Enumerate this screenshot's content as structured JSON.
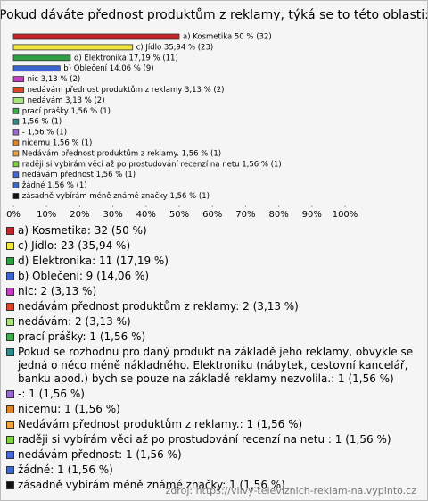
{
  "chart_data": {
    "type": "bar",
    "orientation": "horizontal",
    "title": "Pokud dáváte přednost produktům z reklamy, týká se to této oblasti:",
    "values": [
      50,
      35.94,
      17.19,
      14.06,
      3.13,
      3.13,
      3.13,
      1.56,
      1.56,
      1.56,
      1.56,
      1.56,
      1.56,
      1.56,
      1.56,
      1.56
    ],
    "value_labels": [
      "a) Kosmetika 50 % (32)",
      "c) Jídlo 35,94 % (23)",
      "d) Elektronika 17,19 % (11)",
      "b) Oblečení 14,06 % (9)",
      "nic 3,13 % (2)",
      "nedávám přednost produktům z reklamy 3,13 % (2)",
      "nedávám 3,13 % (2)",
      "prací prášky 1,56 % (1)",
      "1,56 % (1)",
      "- 1,56 % (1)",
      "nicemu 1,56 % (1)",
      "Nedávám přednost produktům z reklamy. 1,56 % (1)",
      "raději si vybírám věci až po prostudování recenzí na netu  1,56 % (1)",
      "nedávám přednost 1,56 % (1)",
      "žádné 1,56 % (1)",
      "zásadně vybírám méně známé značky 1,56 % (1)"
    ],
    "colors": [
      "#c4272b",
      "#f2e63a",
      "#2ea043",
      "#3b63d1",
      "#c43cc4",
      "#e0462a",
      "#a6e37a",
      "#3bb04b",
      "#2f8c8c",
      "#9a6ad0",
      "#e0842a",
      "#f0a43a",
      "#7ad43a",
      "#4468d6",
      "#3a6ad0",
      "#111111"
    ],
    "legend_labels": [
      "a) Kosmetika: 32 (50 %)",
      "c) Jídlo: 23 (35,94 %)",
      "d) Elektronika: 11 (17,19 %)",
      "b) Oblečení: 9 (14,06 %)",
      "nic: 2 (3,13 %)",
      "nedávám přednost produktům z reklamy: 2 (3,13 %)",
      "nedávám: 2 (3,13 %)",
      "prací prášky: 1 (1,56 %)",
      "Pokud se rozhodnu pro daný produkt na základě jeho reklamy, obvykle se jedná o něco méně nákladného. Elektroniku (nábytek, cestovní kancelář, banku apod.) bych se pouze na základě reklamy nezvolila.: 1 (1,56 %)",
      "-: 1 (1,56 %)",
      "nicemu: 1 (1,56 %)",
      "Nedávám přednost produktům z reklamy.: 1 (1,56 %)",
      "raději si vybírám věci až po prostudování recenzí na netu : 1 (1,56 %)",
      "nedávám přednost: 1 (1,56 %)",
      "žádné: 1 (1,56 %)",
      "zásadně vybírám méně známé značky: 1 (1,56 %)"
    ],
    "xlim": [
      0,
      100
    ],
    "xticks": [
      {
        "value": 0,
        "label": "0%"
      },
      {
        "value": 10,
        "label": "10%"
      },
      {
        "value": 20,
        "label": "20%"
      },
      {
        "value": 30,
        "label": "30%"
      },
      {
        "value": 40,
        "label": "40%"
      },
      {
        "value": 50,
        "label": "50%"
      },
      {
        "value": 60,
        "label": "60%"
      },
      {
        "value": 70,
        "label": "70%"
      },
      {
        "value": 80,
        "label": "80%"
      },
      {
        "value": 90,
        "label": "90%"
      },
      {
        "value": 100,
        "label": "100%"
      }
    ],
    "source": "zdroj: https://vlivy-televiznich-reklam-na.vyplnto.cz"
  }
}
